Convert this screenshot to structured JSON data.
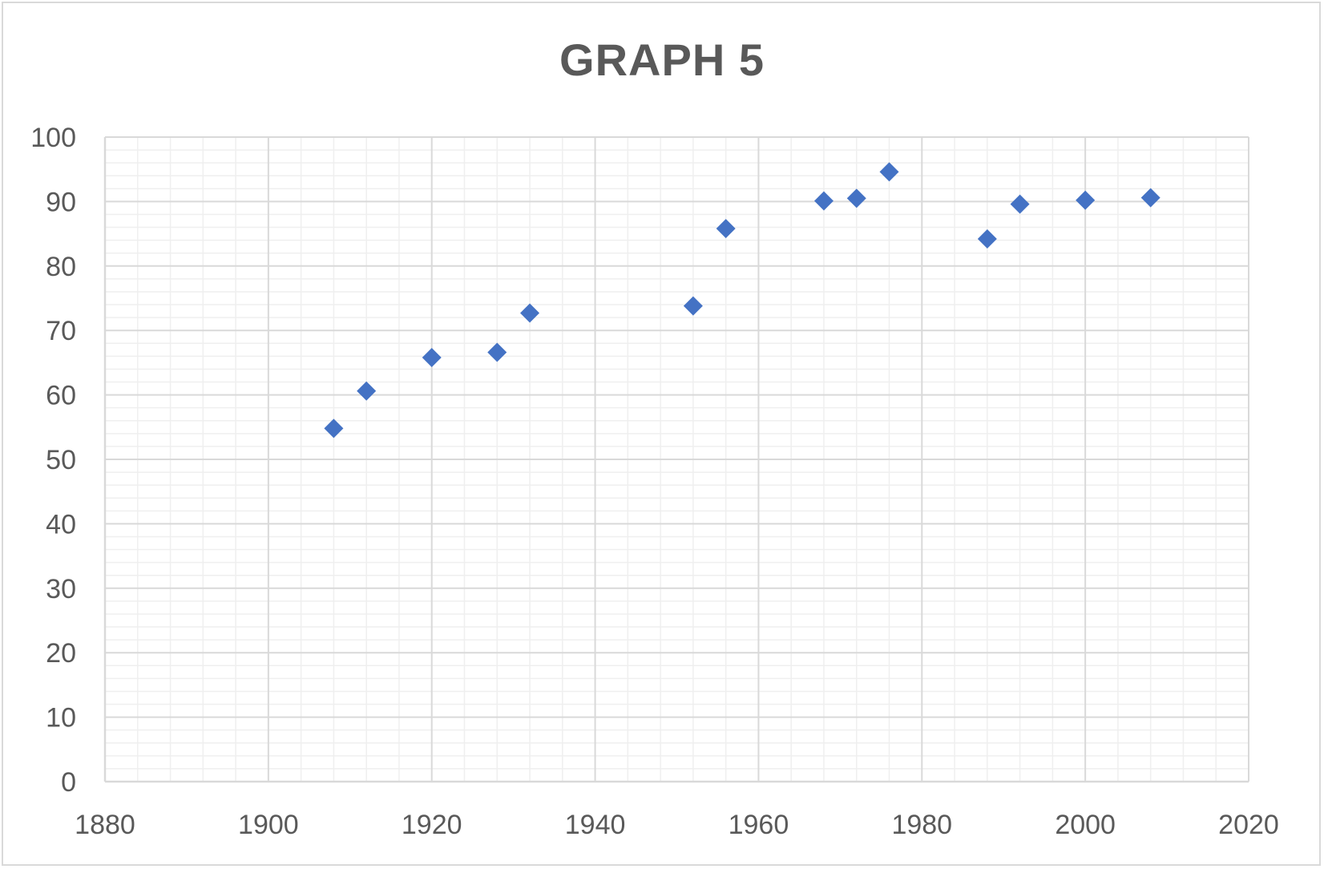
{
  "chart_data": {
    "type": "scatter",
    "title": "GRAPH 5",
    "xlabel": "",
    "ylabel": "",
    "xlim": [
      1880,
      2020
    ],
    "ylim": [
      0,
      100
    ],
    "x_ticks": [
      1880,
      1900,
      1920,
      1940,
      1960,
      1980,
      2000,
      2020
    ],
    "y_ticks": [
      0,
      10,
      20,
      30,
      40,
      50,
      60,
      70,
      80,
      90,
      100
    ],
    "x_minor_step": 4,
    "y_minor_step": 2,
    "grid": true,
    "legend": "none",
    "marker": "diamond",
    "colors": {
      "marker": "#4472c4",
      "major_grid": "#d9d9d9",
      "minor_grid": "#efefef",
      "text": "#595959"
    },
    "series": [
      {
        "points": [
          {
            "x": 1908,
            "y": 54.8
          },
          {
            "x": 1912,
            "y": 60.6
          },
          {
            "x": 1920,
            "y": 65.8
          },
          {
            "x": 1928,
            "y": 66.6
          },
          {
            "x": 1932,
            "y": 72.7
          },
          {
            "x": 1952,
            "y": 73.8
          },
          {
            "x": 1956,
            "y": 85.8
          },
          {
            "x": 1968,
            "y": 90.1
          },
          {
            "x": 1972,
            "y": 90.5
          },
          {
            "x": 1976,
            "y": 94.6
          },
          {
            "x": 1988,
            "y": 84.2
          },
          {
            "x": 1992,
            "y": 89.6
          },
          {
            "x": 2000,
            "y": 90.2
          },
          {
            "x": 2008,
            "y": 90.6
          }
        ]
      }
    ]
  }
}
